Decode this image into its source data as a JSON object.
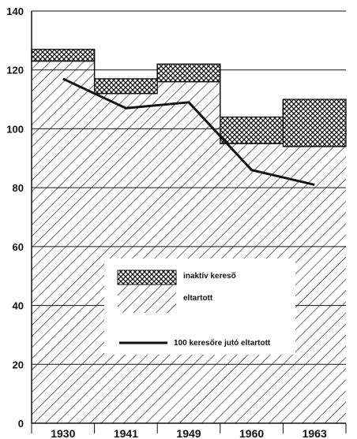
{
  "chart_data": {
    "type": "bar",
    "categories": [
      "1930",
      "1941",
      "1949",
      "1960",
      "1963"
    ],
    "ylim": [
      0,
      140
    ],
    "yticks": [
      0,
      20,
      40,
      60,
      80,
      100,
      120,
      140
    ],
    "grid": true,
    "series": [
      {
        "name": "eltartott",
        "pattern": "diagonal-hatch",
        "values": [
          123,
          112,
          116,
          95,
          94
        ]
      },
      {
        "name": "inaktív kereső",
        "pattern": "cross-hatch",
        "values": [
          4,
          5,
          6,
          9,
          16
        ]
      },
      {
        "name": "100 keresőre jutó eltartott",
        "type": "line",
        "values": [
          117,
          107,
          109,
          86,
          81
        ]
      }
    ],
    "legend": {
      "placement": "lower-center",
      "items": [
        "inaktív kereső",
        "eltartott",
        "100 keresőre jutó eltartott"
      ]
    },
    "colors": {
      "ink": "#111111",
      "paper": "#ffffff"
    }
  }
}
